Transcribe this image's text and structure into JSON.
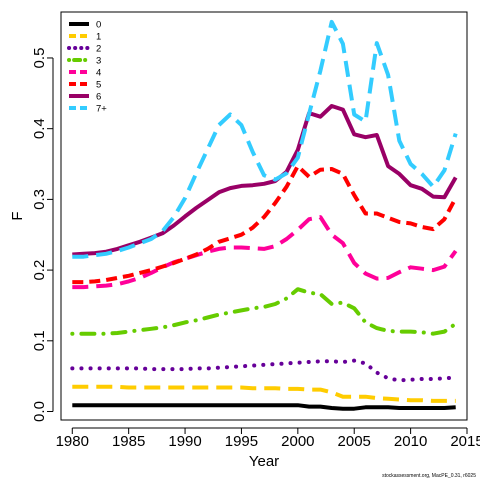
{
  "chart_data": {
    "type": "line",
    "xlabel": "Year",
    "ylabel": "F",
    "xlim": [
      1979,
      2015
    ],
    "ylim": [
      -0.012,
      0.565
    ],
    "x_ticks": [
      1980,
      1985,
      1990,
      1995,
      2000,
      2005,
      2010,
      2015
    ],
    "y_ticks": [
      0.0,
      0.1,
      0.2,
      0.3,
      0.4,
      0.5
    ],
    "y_tick_labels": [
      "0.0",
      "0.1",
      "0.2",
      "0.3",
      "0.4",
      "0.5"
    ],
    "legend_position": "top-left",
    "footer": "stockassessment.org, MacPE_0.31, r6025",
    "x": [
      1980,
      1981,
      1982,
      1983,
      1984,
      1985,
      1986,
      1987,
      1988,
      1989,
      1990,
      1991,
      1992,
      1993,
      1994,
      1995,
      1996,
      1997,
      1998,
      1999,
      2000,
      2001,
      2002,
      2003,
      2004,
      2005,
      2006,
      2007,
      2008,
      2009,
      2010,
      2011,
      2012,
      2013,
      2014
    ],
    "series": [
      {
        "name": "0",
        "color": "#000000",
        "dash": "solid",
        "values": [
          0.009,
          0.009,
          0.009,
          0.009,
          0.009,
          0.009,
          0.009,
          0.009,
          0.009,
          0.009,
          0.009,
          0.009,
          0.009,
          0.009,
          0.009,
          0.009,
          0.009,
          0.009,
          0.009,
          0.009,
          0.009,
          0.007,
          0.007,
          0.005,
          0.004,
          0.004,
          0.006,
          0.006,
          0.006,
          0.005,
          0.005,
          0.005,
          0.005,
          0.005,
          0.006
        ]
      },
      {
        "name": "1",
        "color": "#FFCC00",
        "dash": "longdash",
        "values": [
          0.035,
          0.035,
          0.035,
          0.035,
          0.035,
          0.034,
          0.034,
          0.034,
          0.034,
          0.034,
          0.034,
          0.034,
          0.034,
          0.034,
          0.034,
          0.034,
          0.033,
          0.033,
          0.033,
          0.032,
          0.032,
          0.031,
          0.031,
          0.027,
          0.021,
          0.021,
          0.021,
          0.019,
          0.018,
          0.017,
          0.016,
          0.016,
          0.015,
          0.015,
          0.015
        ]
      },
      {
        "name": "2",
        "color": "#660099",
        "dash": "dotted",
        "values": [
          0.061,
          0.061,
          0.061,
          0.061,
          0.061,
          0.061,
          0.061,
          0.06,
          0.06,
          0.06,
          0.06,
          0.061,
          0.061,
          0.062,
          0.063,
          0.064,
          0.065,
          0.066,
          0.067,
          0.068,
          0.069,
          0.07,
          0.071,
          0.071,
          0.07,
          0.072,
          0.068,
          0.055,
          0.047,
          0.044,
          0.045,
          0.046,
          0.046,
          0.047,
          0.048
        ]
      },
      {
        "name": "3",
        "color": "#66CC00",
        "dash": "dotdash",
        "values": [
          0.11,
          0.11,
          0.11,
          0.11,
          0.111,
          0.113,
          0.115,
          0.117,
          0.119,
          0.122,
          0.126,
          0.129,
          0.133,
          0.137,
          0.14,
          0.143,
          0.146,
          0.148,
          0.152,
          0.16,
          0.173,
          0.168,
          0.166,
          0.152,
          0.154,
          0.146,
          0.126,
          0.118,
          0.114,
          0.113,
          0.113,
          0.112,
          0.11,
          0.113,
          0.124
        ]
      },
      {
        "name": "4",
        "color": "#FF0099",
        "dash": "longdash",
        "values": [
          0.176,
          0.176,
          0.177,
          0.178,
          0.18,
          0.184,
          0.189,
          0.196,
          0.204,
          0.211,
          0.216,
          0.221,
          0.226,
          0.23,
          0.232,
          0.232,
          0.231,
          0.23,
          0.234,
          0.244,
          0.257,
          0.272,
          0.275,
          0.25,
          0.238,
          0.21,
          0.195,
          0.188,
          0.189,
          0.197,
          0.204,
          0.202,
          0.2,
          0.205,
          0.227
        ]
      },
      {
        "name": "5",
        "color": "#FF0000",
        "dash": "dashed",
        "values": [
          0.183,
          0.183,
          0.184,
          0.186,
          0.189,
          0.192,
          0.196,
          0.2,
          0.205,
          0.21,
          0.216,
          0.222,
          0.23,
          0.24,
          0.245,
          0.25,
          0.26,
          0.275,
          0.295,
          0.318,
          0.347,
          0.332,
          0.342,
          0.343,
          0.336,
          0.306,
          0.28,
          0.28,
          0.274,
          0.268,
          0.266,
          0.261,
          0.258,
          0.272,
          0.302
        ]
      },
      {
        "name": "6",
        "color": "#990066",
        "dash": "solid",
        "values": [
          0.222,
          0.223,
          0.224,
          0.226,
          0.23,
          0.235,
          0.24,
          0.246,
          0.252,
          0.263,
          0.276,
          0.288,
          0.299,
          0.31,
          0.316,
          0.319,
          0.32,
          0.322,
          0.326,
          0.339,
          0.37,
          0.422,
          0.417,
          0.432,
          0.427,
          0.392,
          0.388,
          0.391,
          0.347,
          0.336,
          0.32,
          0.315,
          0.304,
          0.303,
          0.331
        ]
      },
      {
        "name": "7+",
        "color": "#33CCFF",
        "dash": "longdash",
        "values": [
          0.219,
          0.219,
          0.221,
          0.223,
          0.227,
          0.232,
          0.238,
          0.244,
          0.255,
          0.275,
          0.302,
          0.337,
          0.371,
          0.405,
          0.42,
          0.405,
          0.367,
          0.334,
          0.328,
          0.337,
          0.359,
          0.421,
          0.482,
          0.551,
          0.52,
          0.42,
          0.41,
          0.521,
          0.476,
          0.383,
          0.35,
          0.336,
          0.318,
          0.341,
          0.393
        ]
      }
    ]
  }
}
